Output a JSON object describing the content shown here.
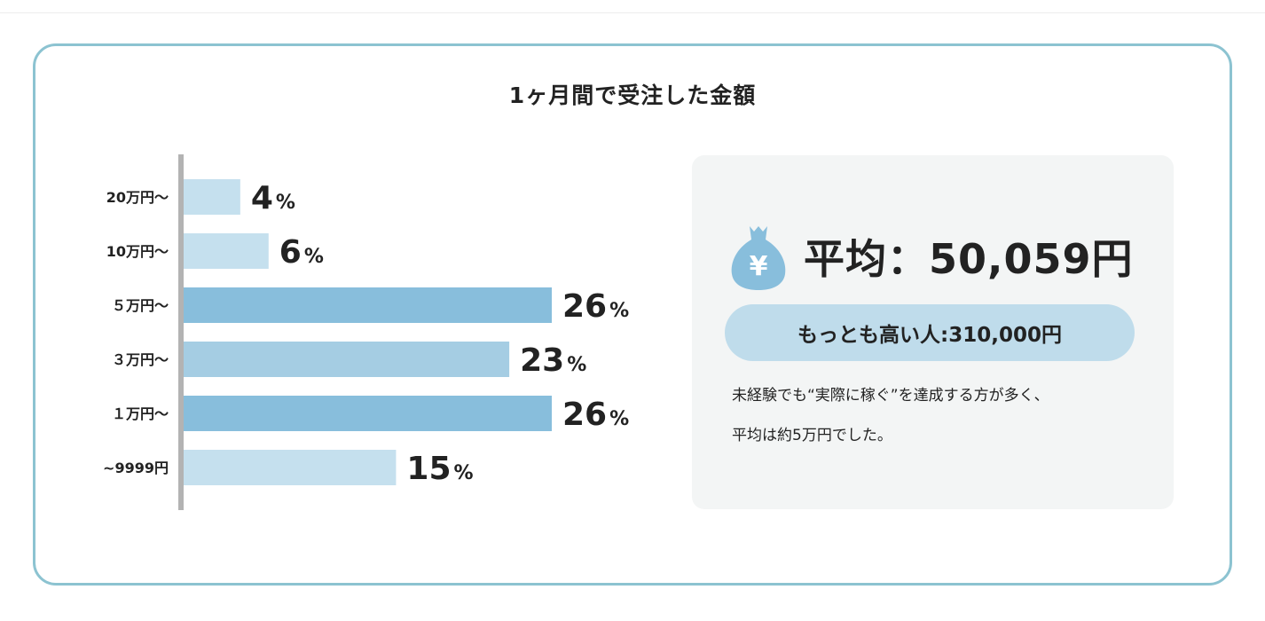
{
  "chart_data": {
    "type": "bar",
    "orientation": "horizontal",
    "title": "1ヶ月間で受注した金額",
    "categories": [
      "20万円〜",
      "10万円〜",
      "５万円〜",
      "３万円〜",
      "１万円〜",
      "~9999円"
    ],
    "values": [
      4,
      6,
      26,
      23,
      26,
      15
    ],
    "unit": "%",
    "bar_colors": [
      "#c5e0ee",
      "#c5e0ee",
      "#88bedc",
      "#a5cde3",
      "#88bedc",
      "#c5e0ee"
    ],
    "axis_color": "#b3b3b3",
    "xlim": [
      0,
      26
    ],
    "grid": false,
    "legend": "none"
  },
  "summary": {
    "icon": "moneybag-yen-icon",
    "icon_color": "#88bedc",
    "icon_symbol": "¥",
    "average_text": "平均：50,059円",
    "max_text": "もっとも高い人:310,000円",
    "note_line1": "未経験でも“実際に稼ぐ”を達成する方が多く、",
    "note_line2": "平均は約5万円でした。"
  },
  "colors": {
    "frame_border": "#8cc3d1",
    "panel_bg": "#f3f5f5",
    "pill_bg": "#bfdceb"
  }
}
